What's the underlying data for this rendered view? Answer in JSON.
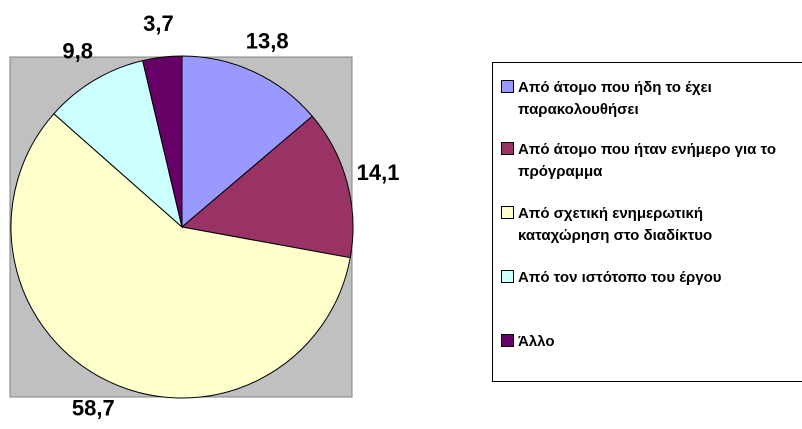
{
  "chart_data": {
    "type": "pie",
    "categories": [
      "Από άτομο που ήδη το έχει παρακολουθήσει",
      "Από άτομο που ήταν ενήμερο για το πρόγραμμα",
      "Από σχετική ενημερωτική καταχώρηση στο διαδίκτυο",
      "Από τον ιστότοπο του έργου",
      "Άλλο"
    ],
    "values": [
      13.8,
      14.1,
      58.7,
      9.8,
      3.7
    ],
    "value_labels": [
      "13,8",
      "14,1",
      "58,7",
      "9,8",
      "3,7"
    ],
    "colors": [
      "#9999ff",
      "#993366",
      "#ffffcc",
      "#ccffff",
      "#660066"
    ],
    "legend": "right"
  }
}
